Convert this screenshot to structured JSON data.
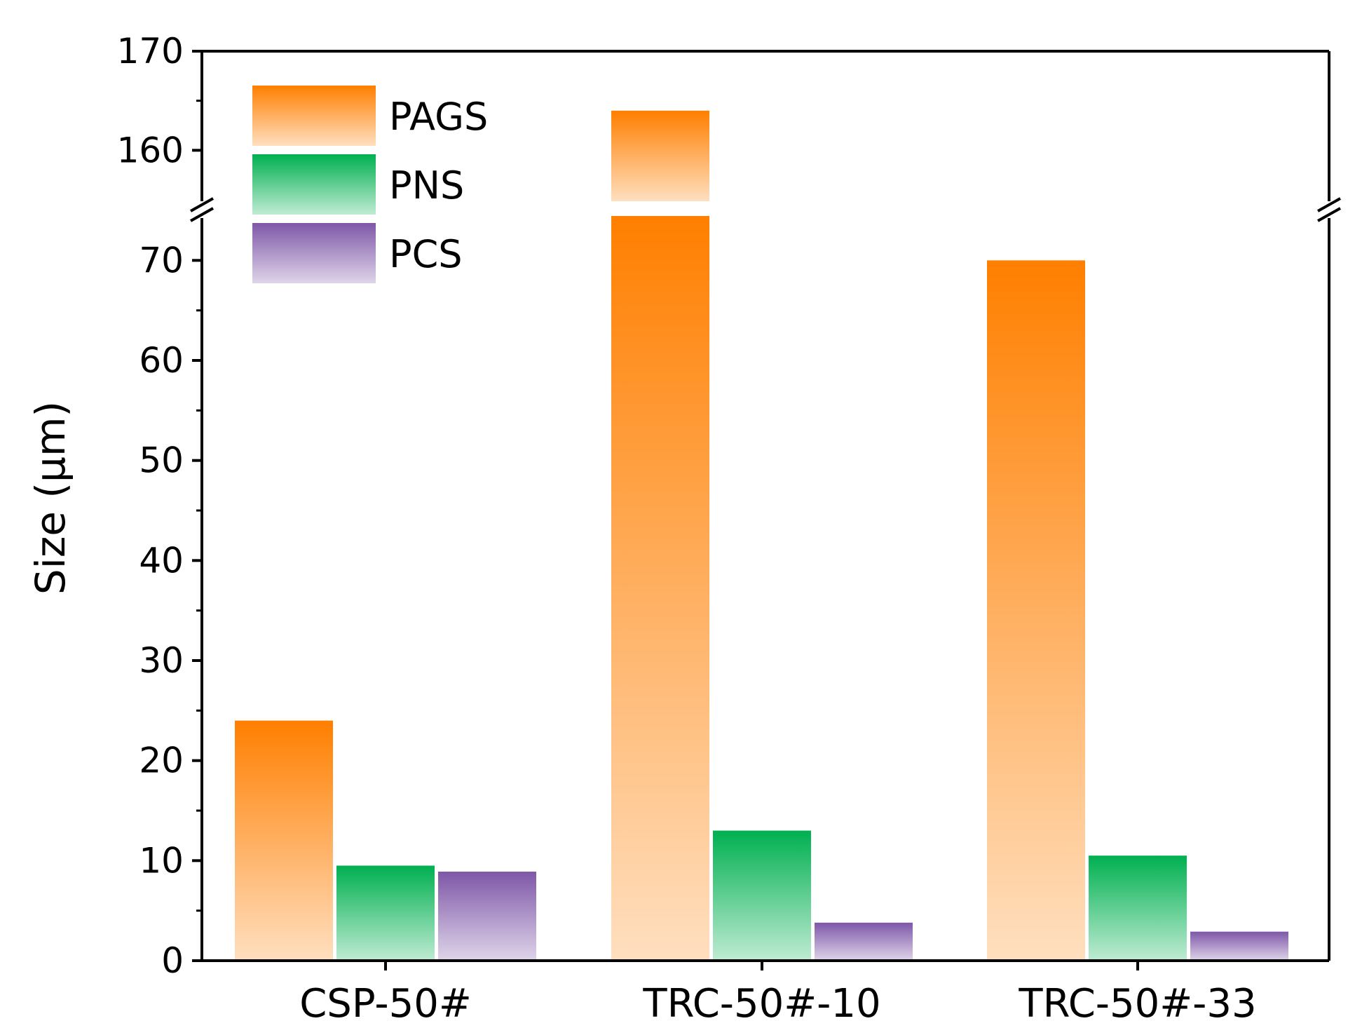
{
  "chart_data": {
    "type": "bar",
    "title": "",
    "xlabel": "",
    "ylabel": "Size (μm)",
    "categories": [
      "CSP-50#",
      "TRC-50#-10",
      "TRC-50#-33"
    ],
    "series": [
      {
        "name": "PAGS",
        "values": [
          24,
          164,
          70
        ],
        "color": "#ff7f00"
      },
      {
        "name": "PNS",
        "values": [
          9.5,
          13,
          10.5
        ],
        "color": "#00b050"
      },
      {
        "name": "PCS",
        "values": [
          8.9,
          3.8,
          2.9
        ],
        "color": "#7e57a8"
      }
    ],
    "y_axis": {
      "broken": true,
      "lower_range": [
        0,
        75
      ],
      "upper_range": [
        155,
        170
      ],
      "lower_ticks": [
        0,
        10,
        20,
        30,
        40,
        50,
        60,
        70
      ],
      "upper_ticks": [
        160,
        170
      ],
      "lower_tick_labels": [
        "0",
        "10",
        "20",
        "30",
        "40",
        "50",
        "60",
        "70"
      ],
      "upper_tick_labels": [
        "160",
        "170"
      ]
    },
    "legend": {
      "position": "top-left",
      "entries": [
        "PAGS",
        "PNS",
        "PCS"
      ]
    },
    "grid": false
  }
}
